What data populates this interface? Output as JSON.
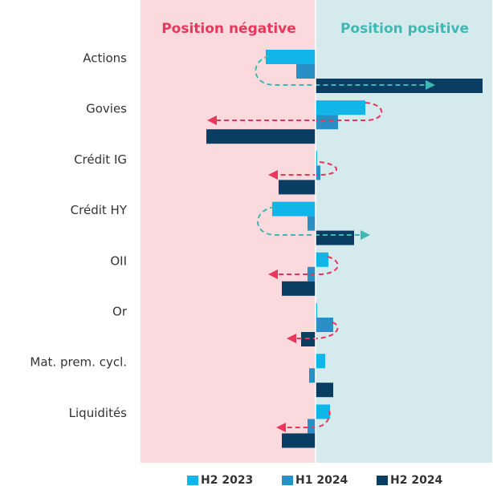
{
  "chart_data": {
    "type": "bar",
    "orientation": "horizontal",
    "negative_label": "Position négative",
    "positive_label": "Position positive",
    "categories": [
      "Actions",
      "Govies",
      "Crédit IG",
      "Crédit HY",
      "OII",
      "Or",
      "Mat. prem. cycl.",
      "Liquidités"
    ],
    "series": [
      {
        "name": "H2 2023",
        "color": "#12b5ea",
        "values": [
          -3.1,
          3.1,
          0.1,
          -2.7,
          0.8,
          0.1,
          0.6,
          0.9
        ]
      },
      {
        "name": "H1 2024",
        "color": "#2a8fc4",
        "values": [
          -1.2,
          1.4,
          0.3,
          -0.5,
          -0.5,
          1.1,
          -0.4,
          -0.5
        ]
      },
      {
        "name": "H2 2024",
        "color": "#0a3d62",
        "values": [
          10.4,
          -6.8,
          -2.3,
          2.4,
          -2.1,
          -0.9,
          1.1,
          -2.1
        ]
      }
    ],
    "xlim": [
      -10.9,
      11.0
    ]
  }
}
